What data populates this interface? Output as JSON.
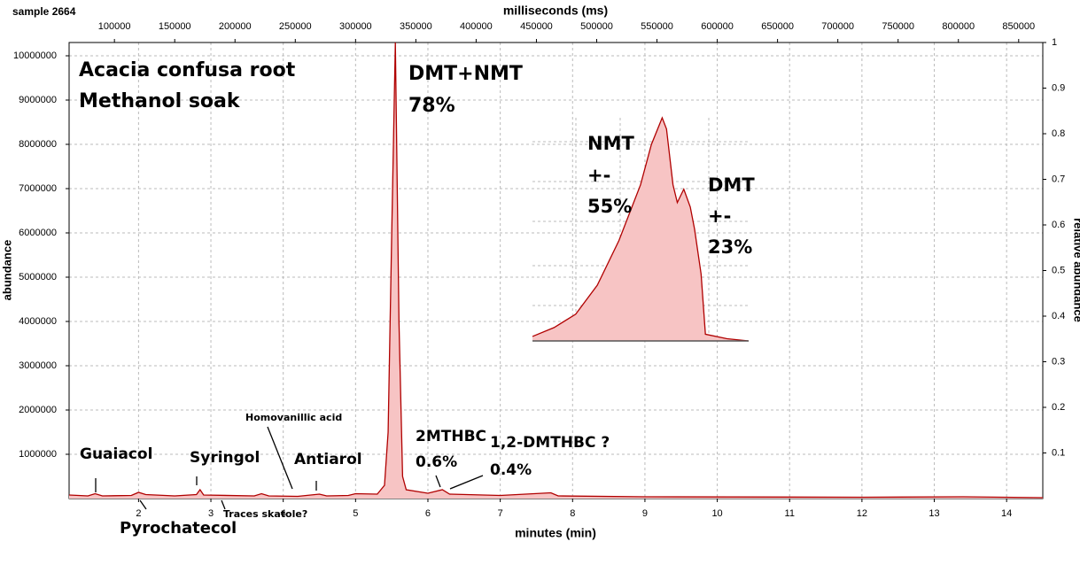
{
  "chart_data": {
    "type": "area",
    "corner_label": "sample 2664",
    "x_label": "minutes (min)",
    "x2_label": "milliseconds (ms)",
    "y_label": "abundance",
    "y2_label": "relative abundance",
    "xlim": [
      1.04,
      14.5
    ],
    "xticks": [
      2,
      3,
      4,
      5,
      6,
      7,
      8,
      9,
      10,
      11,
      12,
      13,
      14
    ],
    "x2lim": [
      62400,
      870000
    ],
    "x2ticks": [
      100000,
      150000,
      200000,
      250000,
      300000,
      350000,
      400000,
      450000,
      500000,
      550000,
      600000,
      650000,
      700000,
      750000,
      800000,
      850000
    ],
    "ylim": [
      0,
      10300000
    ],
    "yticks": [
      1000000,
      2000000,
      3000000,
      4000000,
      5000000,
      6000000,
      7000000,
      8000000,
      9000000,
      10000000
    ],
    "y2lim": [
      0,
      1
    ],
    "y2ticks": [
      0.1,
      0.2,
      0.3,
      0.4,
      0.5,
      0.6,
      0.7,
      0.8,
      0.9,
      1
    ],
    "grid": true,
    "color": "#b00000",
    "fill": "#f7c4c4",
    "x": [
      1.04,
      1.3,
      1.4,
      1.5,
      1.9,
      2.0,
      2.1,
      2.5,
      2.8,
      2.85,
      2.9,
      3.6,
      3.7,
      3.8,
      4.2,
      4.5,
      4.6,
      4.9,
      5.0,
      5.3,
      5.4,
      5.45,
      5.5,
      5.55,
      5.6,
      5.65,
      5.7,
      6.0,
      6.2,
      6.3,
      7.0,
      7.7,
      7.8,
      9.0,
      12.0,
      13.4,
      14.5
    ],
    "values": [
      80000,
      60000,
      110000,
      60000,
      70000,
      140000,
      90000,
      60000,
      90000,
      200000,
      80000,
      60000,
      110000,
      60000,
      50000,
      100000,
      60000,
      70000,
      110000,
      100000,
      300000,
      1500000,
      6000000,
      10300000,
      4000000,
      500000,
      200000,
      120000,
      200000,
      100000,
      70000,
      130000,
      60000,
      40000,
      30000,
      40000,
      20000
    ],
    "annotations": [
      "Acacia confusa root",
      "Methanol soak",
      "DMT+NMT",
      "78%",
      "Guaiacol",
      "Pyrochatecol",
      "Syringol",
      "Traces skatole?",
      "Homovanillic acid",
      "Antiarol",
      "2MTHBC",
      "0.6%",
      "1,2-DMTHBC  ?",
      "0.4%"
    ],
    "inset": {
      "type": "area",
      "xlim": [
        0,
        100
      ],
      "ylim": [
        0,
        1
      ],
      "x": [
        0,
        10,
        20,
        30,
        40,
        50,
        55,
        60,
        62,
        65,
        67,
        70,
        73,
        75,
        78,
        80,
        90,
        100
      ],
      "values": [
        0.02,
        0.06,
        0.12,
        0.25,
        0.45,
        0.7,
        0.88,
        1.0,
        0.95,
        0.7,
        0.62,
        0.68,
        0.6,
        0.5,
        0.3,
        0.03,
        0.01,
        0.0
      ],
      "annotations": [
        "NMT",
        "+-",
        "55%",
        "DMT",
        "+-",
        "23%"
      ]
    }
  }
}
